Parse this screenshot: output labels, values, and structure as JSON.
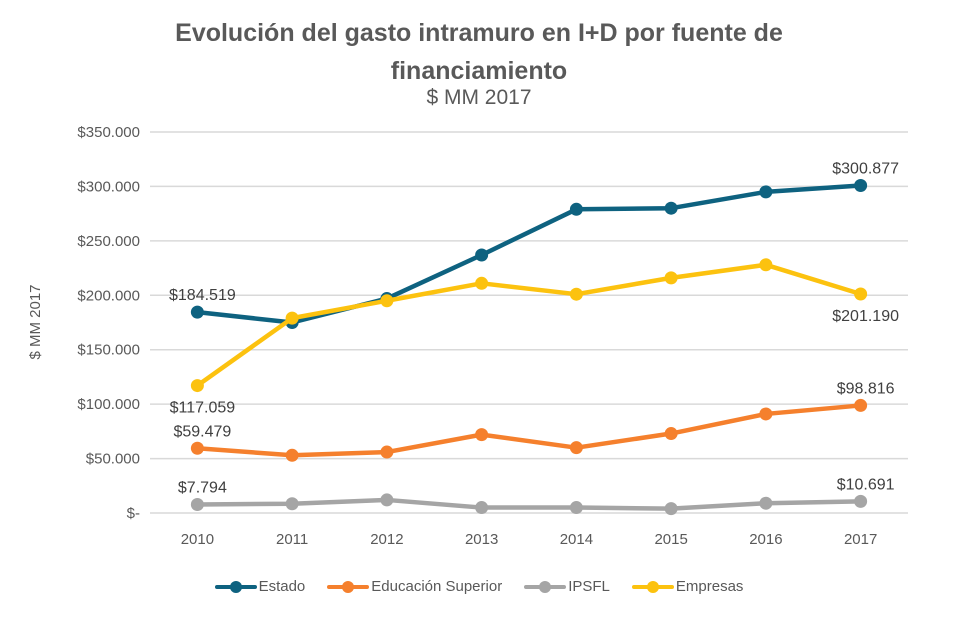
{
  "chart_data": {
    "type": "line",
    "title": "Evolución del gasto intramuro en I+D por fuente de financiamiento",
    "title_lines": [
      "Evolución del gasto intramuro en I+D por fuente de",
      "financiamiento"
    ],
    "subtitle": "$ MM 2017",
    "xlabel": "",
    "ylabel": "$ MM 2017",
    "ylim": [
      0,
      350000
    ],
    "yticks": [
      0,
      50000,
      100000,
      150000,
      200000,
      250000,
      300000,
      350000
    ],
    "ytick_labels": [
      "$-",
      "$50.000",
      "$100.000",
      "$150.000",
      "$200.000",
      "$250.000",
      "$300.000",
      "$350.000"
    ],
    "grid": true,
    "legend_position": "bottom",
    "categories": [
      "2010",
      "2011",
      "2012",
      "2013",
      "2014",
      "2015",
      "2016",
      "2017"
    ],
    "series": [
      {
        "name": "Estado",
        "color": "#0e6280",
        "values": [
          184519,
          175000,
          197000,
          237000,
          279000,
          280000,
          295000,
          300877
        ],
        "labels": [
          {
            "index": 0,
            "text": "$184.519",
            "position": "above"
          },
          {
            "index": 7,
            "text": "$300.877",
            "position": "above"
          }
        ]
      },
      {
        "name": "Educación Superior",
        "color": "#f5802d",
        "values": [
          59479,
          53000,
          56000,
          72000,
          60000,
          73000,
          91000,
          98816
        ],
        "labels": [
          {
            "index": 0,
            "text": "$59.479",
            "position": "above"
          },
          {
            "index": 7,
            "text": "$98.816",
            "position": "above"
          }
        ]
      },
      {
        "name": "IPSFL",
        "color": "#a5a5a5",
        "values": [
          7794,
          8500,
          12000,
          5000,
          5000,
          4000,
          9000,
          10691
        ],
        "labels": [
          {
            "index": 0,
            "text": "$7.794",
            "position": "above"
          },
          {
            "index": 7,
            "text": "$10.691",
            "position": "above"
          }
        ]
      },
      {
        "name": "Empresas",
        "color": "#fcc20f",
        "values": [
          117059,
          179000,
          195000,
          211000,
          201000,
          216000,
          228000,
          201190
        ],
        "labels": [
          {
            "index": 0,
            "text": "$117.059",
            "position": "below"
          },
          {
            "index": 7,
            "text": "$201.190",
            "position": "below"
          }
        ]
      }
    ]
  }
}
